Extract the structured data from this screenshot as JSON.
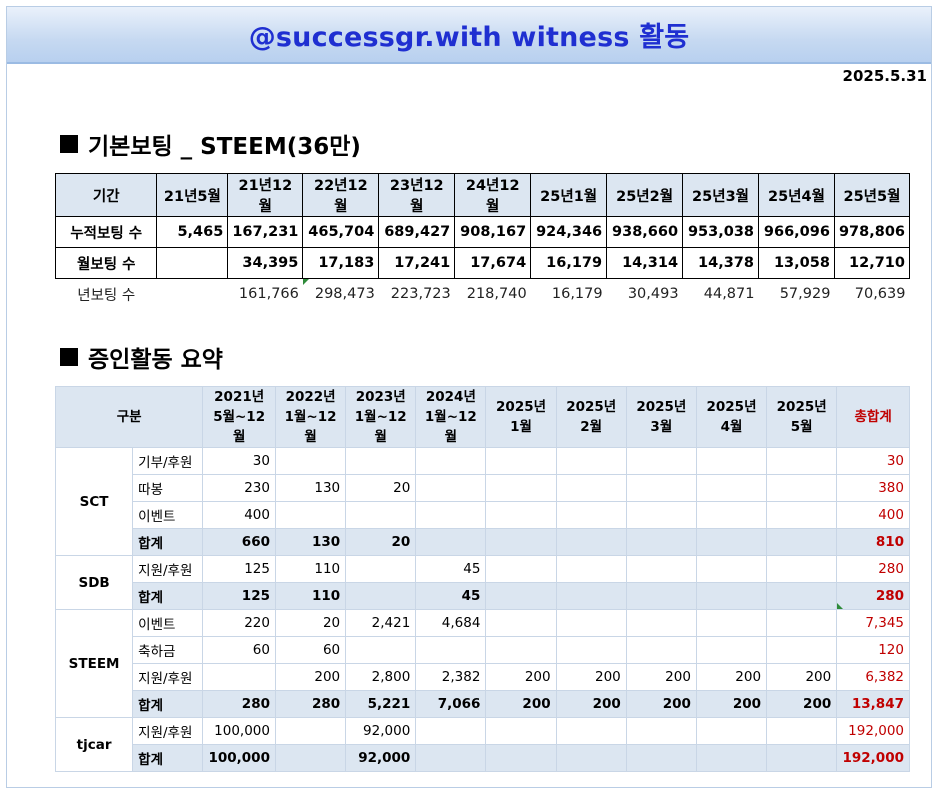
{
  "title": "@successgr.with witness 활동",
  "date": "2025.5.31",
  "section1": {
    "title": "기본보팅 _ STEEM(36만)",
    "headers": [
      "기간",
      "21년5월",
      "21년12월",
      "22년12월",
      "23년12월",
      "24년12월",
      "25년1월",
      "25년2월",
      "25년3월",
      "25년4월",
      "25년5월"
    ],
    "rows": [
      [
        "누적보팅 수",
        "5,465",
        "167,231",
        "465,704",
        "689,427",
        "908,167",
        "924,346",
        "938,660",
        "953,038",
        "966,096",
        "978,806"
      ],
      [
        "월보팅 수",
        "",
        "34,395",
        "17,183",
        "17,241",
        "17,674",
        "16,179",
        "14,314",
        "14,378",
        "13,058",
        "12,710"
      ],
      [
        "년보팅 수",
        "",
        "161,766",
        "298,473",
        "223,723",
        "218,740",
        "16,179",
        "30,493",
        "44,871",
        "57,929",
        "70,639"
      ]
    ]
  },
  "section2": {
    "title": "증인활동 요약",
    "header_label": "구분",
    "columns": [
      [
        "2021년",
        "5월~12월"
      ],
      [
        "2022년",
        "1월~12월"
      ],
      [
        "2023년",
        "1월~12월"
      ],
      [
        "2024년",
        "1월~12월"
      ],
      [
        "2025년",
        "1월"
      ],
      [
        "2025년",
        "2월"
      ],
      [
        "2025년",
        "3월"
      ],
      [
        "2025년",
        "4월"
      ],
      [
        "2025년",
        "5월"
      ]
    ],
    "total_label": "총합계",
    "groups": [
      {
        "name": "SCT",
        "rows": [
          {
            "item": "기부/후원",
            "values": [
              "30",
              "",
              "",
              "",
              "",
              "",
              "",
              "",
              ""
            ],
            "total": "30"
          },
          {
            "item": "따봉",
            "values": [
              "230",
              "130",
              "20",
              "",
              "",
              "",
              "",
              "",
              ""
            ],
            "total": "380"
          },
          {
            "item": "이벤트",
            "values": [
              "400",
              "",
              "",
              "",
              "",
              "",
              "",
              "",
              ""
            ],
            "total": "400"
          },
          {
            "item": "합계",
            "values": [
              "660",
              "130",
              "20",
              "",
              "",
              "",
              "",
              "",
              ""
            ],
            "total": "810",
            "sum": true
          }
        ]
      },
      {
        "name": "SDB",
        "rows": [
          {
            "item": "지원/후원",
            "values": [
              "125",
              "110",
              "",
              "45",
              "",
              "",
              "",
              "",
              ""
            ],
            "total": "280"
          },
          {
            "item": "합계",
            "values": [
              "125",
              "110",
              "",
              "45",
              "",
              "",
              "",
              "",
              ""
            ],
            "total": "280",
            "sum": true
          }
        ]
      },
      {
        "name": "STEEM",
        "rows": [
          {
            "item": "이벤트",
            "values": [
              "220",
              "20",
              "2,421",
              "4,684",
              "",
              "",
              "",
              "",
              ""
            ],
            "total": "7,345"
          },
          {
            "item": "축하금",
            "values": [
              "60",
              "60",
              "",
              "",
              "",
              "",
              "",
              "",
              ""
            ],
            "total": "120"
          },
          {
            "item": "지원/후원",
            "values": [
              "",
              "200",
              "2,800",
              "2,382",
              "200",
              "200",
              "200",
              "200",
              "200"
            ],
            "total": "6,382"
          },
          {
            "item": "합계",
            "values": [
              "280",
              "280",
              "5,221",
              "7,066",
              "200",
              "200",
              "200",
              "200",
              "200"
            ],
            "total": "13,847",
            "sum": true
          }
        ]
      },
      {
        "name": "tjcar",
        "rows": [
          {
            "item": "지원/후원",
            "values": [
              "100,000",
              "",
              "92,000",
              "",
              "",
              "",
              "",
              "",
              ""
            ],
            "total": "192,000"
          },
          {
            "item": "합계",
            "values": [
              "100,000",
              "",
              "92,000",
              "",
              "",
              "",
              "",
              "",
              ""
            ],
            "total": "192,000",
            "sum": true
          }
        ]
      }
    ]
  },
  "colors": {
    "title_text": "#1f2fd1",
    "header_fill": "#dce6f1",
    "total_red": "#c00000"
  }
}
